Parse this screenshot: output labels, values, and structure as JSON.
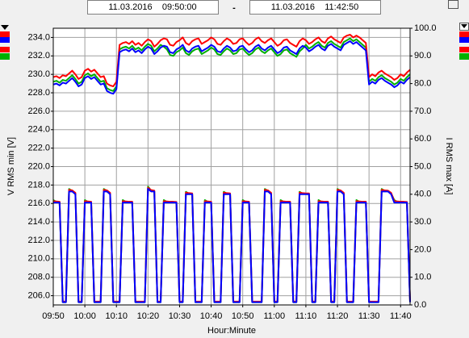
{
  "header": {
    "start": "11.03.2016    09:50:00",
    "separator": "-",
    "end": "11.03.2016    11:42:50"
  },
  "chart_data": {
    "type": "line",
    "x_label": "Hour:Minute",
    "y_label": "V RMS min [V]",
    "y2_label": "I RMS max [A]",
    "x": [
      "09:50",
      "09:51",
      "09:52",
      "09:53",
      "09:54",
      "09:55",
      "09:56",
      "09:57",
      "09:58",
      "09:59",
      "10:00",
      "10:01",
      "10:02",
      "10:03",
      "10:04",
      "10:05",
      "10:06",
      "10:07",
      "10:08",
      "10:09",
      "10:10",
      "10:11",
      "10:12",
      "10:13",
      "10:14",
      "10:15",
      "10:16",
      "10:17",
      "10:18",
      "10:19",
      "10:20",
      "10:21",
      "10:22",
      "10:23",
      "10:24",
      "10:25",
      "10:26",
      "10:27",
      "10:28",
      "10:29",
      "10:30",
      "10:31",
      "10:32",
      "10:33",
      "10:34",
      "10:35",
      "10:36",
      "10:37",
      "10:38",
      "10:39",
      "10:40",
      "10:41",
      "10:42",
      "10:43",
      "10:44",
      "10:45",
      "10:46",
      "10:47",
      "10:48",
      "10:49",
      "10:50",
      "10:51",
      "10:52",
      "10:53",
      "10:54",
      "10:55",
      "10:56",
      "10:57",
      "10:58",
      "10:59",
      "11:00",
      "11:01",
      "11:02",
      "11:03",
      "11:04",
      "11:05",
      "11:06",
      "11:07",
      "11:08",
      "11:09",
      "11:10",
      "11:11",
      "11:12",
      "11:13",
      "11:14",
      "11:15",
      "11:16",
      "11:17",
      "11:18",
      "11:19",
      "11:20",
      "11:21",
      "11:22",
      "11:23",
      "11:24",
      "11:25",
      "11:26",
      "11:27",
      "11:28",
      "11:29",
      "11:30",
      "11:31",
      "11:32",
      "11:33",
      "11:34",
      "11:35",
      "11:36",
      "11:37",
      "11:38",
      "11:39",
      "11:40",
      "11:41",
      "11:42",
      "11:43"
    ],
    "xlim": [
      "09:50",
      "11:43"
    ],
    "xticks": [
      "09:50",
      "10:00",
      "10:10",
      "10:20",
      "10:30",
      "10:40",
      "10:50",
      "11:00",
      "11:10",
      "11:20",
      "11:30",
      "11:40"
    ],
    "ylim": [
      205,
      235
    ],
    "yticks": [
      {
        "value": 206,
        "label": "206.0"
      },
      {
        "value": 208,
        "label": "208.0"
      },
      {
        "value": 210,
        "label": "210.0"
      },
      {
        "value": 212,
        "label": "212.0"
      },
      {
        "value": 214,
        "label": "214.0"
      },
      {
        "value": 216,
        "label": "216.0"
      },
      {
        "value": 218,
        "label": "218.0"
      },
      {
        "value": 220,
        "label": "220.0"
      },
      {
        "value": 222,
        "label": "222.0"
      },
      {
        "value": 224,
        "label": "224.0"
      },
      {
        "value": 226,
        "label": "226.0"
      },
      {
        "value": 228,
        "label": "228.0"
      },
      {
        "value": 230,
        "label": "230.0"
      },
      {
        "value": 232,
        "label": "232.0"
      },
      {
        "value": 234,
        "label": "234.0"
      }
    ],
    "y2lim": [
      0,
      100
    ],
    "y2ticks": [
      {
        "value": 0,
        "label": "0.0"
      },
      {
        "value": 10,
        "label": "10.0"
      },
      {
        "value": 20,
        "label": "20.0"
      },
      {
        "value": 30,
        "label": "30.0"
      },
      {
        "value": 40,
        "label": "40.0"
      },
      {
        "value": 50,
        "label": "50.0"
      },
      {
        "value": 60,
        "label": "60.0"
      },
      {
        "value": 70,
        "label": "70.0"
      },
      {
        "value": 80,
        "label": "80.0"
      },
      {
        "value": 90,
        "label": "90.0"
      },
      {
        "value": 100,
        "label": "100.0"
      }
    ],
    "grid": true,
    "series": [
      {
        "color": "#00b000",
        "axis": "y",
        "values": [
          229.2,
          229.3,
          229.1,
          229.4,
          229.3,
          229.6,
          229.9,
          229.5,
          229.0,
          229.2,
          229.9,
          230.1,
          229.8,
          230.0,
          229.6,
          229.2,
          229.3,
          228.5,
          228.3,
          228.2,
          228.7,
          232.7,
          232.9,
          233.0,
          232.8,
          233.1,
          232.7,
          232.9,
          232.6,
          233.0,
          233.3,
          233.1,
          232.5,
          232.8,
          233.2,
          233.0,
          232.7,
          232.1,
          232.0,
          232.4,
          232.6,
          232.9,
          232.3,
          232.1,
          232.5,
          232.7,
          232.8,
          232.2,
          232.4,
          232.6,
          232.9,
          232.7,
          232.2,
          232.1,
          232.5,
          232.8,
          232.6,
          232.2,
          232.3,
          232.7,
          232.8,
          232.4,
          232.1,
          232.3,
          232.7,
          232.9,
          232.5,
          232.3,
          232.6,
          232.8,
          232.4,
          232.0,
          232.2,
          232.6,
          232.7,
          232.3,
          232.1,
          231.9,
          232.5,
          232.8,
          233.2,
          232.8,
          233.0,
          233.3,
          233.5,
          233.1,
          232.9,
          233.4,
          233.6,
          233.3,
          233.1,
          232.9,
          233.5,
          233.7,
          233.9,
          233.6,
          233.8,
          233.5,
          233.2,
          232.9,
          229.2,
          229.5,
          229.3,
          229.7,
          229.9,
          229.6,
          229.4,
          229.2,
          228.9,
          229.1,
          229.5,
          229.3,
          229.7,
          230.0
        ]
      },
      {
        "color": "#ff0000",
        "axis": "y",
        "values": [
          229.7,
          229.8,
          229.6,
          229.9,
          229.8,
          230.1,
          230.4,
          230.0,
          229.5,
          229.7,
          230.4,
          230.6,
          230.3,
          230.5,
          230.1,
          229.7,
          229.8,
          229.0,
          228.8,
          228.7,
          229.2,
          233.2,
          233.4,
          233.5,
          233.3,
          233.6,
          233.2,
          233.4,
          233.1,
          233.5,
          233.8,
          233.6,
          233.0,
          233.3,
          233.7,
          233.9,
          233.8,
          233.2,
          233.1,
          233.5,
          233.7,
          234.0,
          233.4,
          233.2,
          233.6,
          233.8,
          233.9,
          233.3,
          233.5,
          233.7,
          234.0,
          233.8,
          233.3,
          233.2,
          233.6,
          233.9,
          233.7,
          233.3,
          233.4,
          233.8,
          233.9,
          233.5,
          233.2,
          233.4,
          233.8,
          234.0,
          233.6,
          233.4,
          233.7,
          233.9,
          233.5,
          233.1,
          233.3,
          233.7,
          233.8,
          233.4,
          233.2,
          233.0,
          233.6,
          233.9,
          233.7,
          233.3,
          233.5,
          233.8,
          234.0,
          233.6,
          233.4,
          233.9,
          234.1,
          233.8,
          233.6,
          233.4,
          234.0,
          234.2,
          234.3,
          234.0,
          234.2,
          234.0,
          233.7,
          233.4,
          229.7,
          230.0,
          229.8,
          230.2,
          230.4,
          230.1,
          229.9,
          229.7,
          229.4,
          229.6,
          230.0,
          229.8,
          230.2,
          230.5
        ]
      },
      {
        "color": "#0000ff",
        "axis": "y",
        "values": [
          228.9,
          229.0,
          228.8,
          229.1,
          229.0,
          229.3,
          229.6,
          229.2,
          228.7,
          228.9,
          229.6,
          229.8,
          229.5,
          229.7,
          229.3,
          228.9,
          229.0,
          228.2,
          228.0,
          227.9,
          228.4,
          232.4,
          232.6,
          232.7,
          232.5,
          232.8,
          232.4,
          232.6,
          232.3,
          232.7,
          233.0,
          232.8,
          232.2,
          232.5,
          232.9,
          233.1,
          233.0,
          232.4,
          232.3,
          232.7,
          232.9,
          233.2,
          232.6,
          232.4,
          232.8,
          233.0,
          233.1,
          232.5,
          232.7,
          232.9,
          233.2,
          233.0,
          232.5,
          232.4,
          232.8,
          233.1,
          232.9,
          232.5,
          232.6,
          233.0,
          233.1,
          232.7,
          232.4,
          232.6,
          233.0,
          233.2,
          232.8,
          232.6,
          232.9,
          233.1,
          232.7,
          232.3,
          232.5,
          232.9,
          233.0,
          232.6,
          232.4,
          232.2,
          232.8,
          233.1,
          232.9,
          232.5,
          232.7,
          233.0,
          233.2,
          232.8,
          232.6,
          233.1,
          233.3,
          233.0,
          232.8,
          232.6,
          233.2,
          233.4,
          233.6,
          233.3,
          233.5,
          233.2,
          232.9,
          232.6,
          228.9,
          229.2,
          229.0,
          229.4,
          229.6,
          229.3,
          229.1,
          228.9,
          228.6,
          228.8,
          229.2,
          229.0,
          229.4,
          229.7
        ]
      },
      {
        "color": "#00b000",
        "axis": "y2",
        "values": [
          37.9,
          37.2,
          37.1,
          1.0,
          1.0,
          41.9,
          41.2,
          40.3,
          1.0,
          1.0,
          37.9,
          37.2,
          37.1,
          1.0,
          1.0,
          1.0,
          41.9,
          41.2,
          40.3,
          1.0,
          1.0,
          1.0,
          37.9,
          37.2,
          37.1,
          37.1,
          1.0,
          1.0,
          1.0,
          1.0,
          42.8,
          41.3,
          41.1,
          1.0,
          1.0,
          37.9,
          37.2,
          37.1,
          37.1,
          37.0,
          1.0,
          1.0,
          40.9,
          40.2,
          40.1,
          1.0,
          1.0,
          1.0,
          37.9,
          37.2,
          37.1,
          1.0,
          1.0,
          1.0,
          40.9,
          40.2,
          40.1,
          1.0,
          1.0,
          1.0,
          37.9,
          37.2,
          37.1,
          1.0,
          1.0,
          1.0,
          1.0,
          41.9,
          41.2,
          40.3,
          1.0,
          1.0,
          37.9,
          37.2,
          37.1,
          37.1,
          1.0,
          1.0,
          40.9,
          40.2,
          40.1,
          40.1,
          1.0,
          1.0,
          37.9,
          37.2,
          37.1,
          37.1,
          1.0,
          1.0,
          41.9,
          41.2,
          40.3,
          1.0,
          1.0,
          1.0,
          37.9,
          37.2,
          37.1,
          37.1,
          1.0,
          1.0,
          1.0,
          1.0,
          41.9,
          41.2,
          41.1,
          40.3,
          37.9,
          37.2,
          37.1,
          37.1,
          37.0,
          1.0
        ]
      },
      {
        "color": "#ff0000",
        "axis": "y2",
        "values": [
          37.5,
          37.4,
          37.3,
          1.2,
          1.2,
          41.6,
          41.4,
          40.5,
          1.2,
          1.2,
          37.5,
          37.4,
          37.3,
          1.2,
          1.2,
          1.2,
          41.6,
          41.4,
          40.5,
          1.2,
          1.2,
          1.2,
          37.5,
          37.4,
          37.3,
          37.3,
          1.2,
          1.2,
          1.2,
          1.2,
          42.4,
          41.5,
          41.3,
          1.2,
          1.2,
          37.5,
          37.4,
          37.3,
          37.3,
          37.2,
          1.2,
          1.2,
          40.6,
          40.4,
          40.3,
          1.2,
          1.2,
          1.2,
          37.5,
          37.4,
          37.3,
          1.2,
          1.2,
          1.2,
          40.6,
          40.4,
          40.3,
          1.2,
          1.2,
          1.2,
          37.5,
          37.4,
          37.3,
          1.2,
          1.2,
          1.2,
          1.2,
          41.6,
          41.4,
          40.5,
          1.2,
          1.2,
          37.5,
          37.4,
          37.3,
          37.3,
          1.2,
          1.2,
          40.6,
          40.4,
          40.3,
          40.3,
          1.2,
          1.2,
          37.5,
          37.4,
          37.3,
          37.3,
          1.2,
          1.2,
          41.6,
          41.4,
          40.5,
          1.2,
          1.2,
          1.2,
          37.5,
          37.4,
          37.3,
          37.3,
          1.2,
          1.2,
          1.2,
          1.2,
          41.6,
          41.4,
          41.3,
          40.5,
          37.5,
          37.4,
          37.3,
          37.3,
          37.2,
          1.2
        ]
      },
      {
        "color": "#0000ff",
        "axis": "y2",
        "values": [
          37,
          37,
          37,
          1,
          1,
          41,
          41,
          40,
          1,
          1,
          37,
          37,
          37,
          1,
          1,
          1,
          41,
          41,
          40,
          1,
          1,
          1,
          37,
          37,
          37,
          37,
          1,
          1,
          1,
          1,
          42,
          41,
          41,
          1,
          1,
          37,
          37,
          37,
          37,
          37,
          1,
          1,
          40,
          40,
          40,
          1,
          1,
          1,
          37,
          37,
          37,
          1,
          1,
          1,
          40,
          40,
          40,
          1,
          1,
          1,
          37,
          37,
          37,
          1,
          1,
          1,
          1,
          41,
          41,
          40,
          1,
          1,
          37,
          37,
          37,
          37,
          1,
          1,
          40,
          40,
          40,
          40,
          1,
          1,
          37,
          37,
          37,
          37,
          1,
          1,
          41,
          41,
          40,
          1,
          1,
          1,
          37,
          37,
          37,
          37,
          1,
          1,
          1,
          1,
          41,
          41,
          41,
          40,
          37,
          37,
          37,
          37,
          37,
          1
        ]
      }
    ]
  }
}
